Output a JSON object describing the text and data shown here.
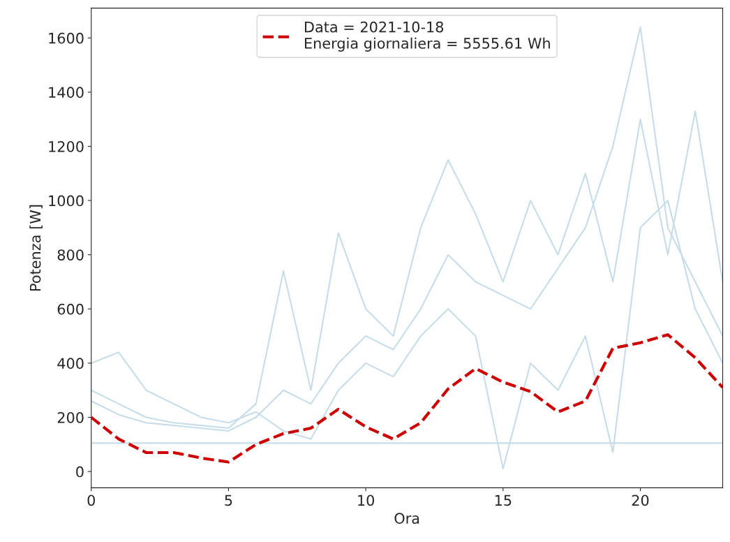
{
  "chart_data": {
    "type": "line",
    "xlabel": "Ora",
    "ylabel": "Potenza [W]",
    "x": [
      0,
      1,
      2,
      3,
      4,
      5,
      6,
      7,
      8,
      9,
      10,
      11,
      12,
      13,
      14,
      15,
      16,
      17,
      18,
      19,
      20,
      21,
      22,
      23
    ],
    "series": [
      {
        "color": "#c6dde9",
        "values": [
          105,
          105,
          105,
          105,
          105,
          105,
          105,
          105,
          105,
          105,
          105,
          105,
          105,
          105,
          105,
          105,
          105,
          105,
          105,
          105,
          105,
          105,
          105,
          105
        ]
      },
      {
        "color": "#c6dde9",
        "values": [
          260,
          210,
          180,
          170,
          160,
          150,
          200,
          300,
          250,
          400,
          500,
          450,
          600,
          800,
          700,
          650,
          600,
          750,
          900,
          1200,
          1640,
          900,
          700,
          500
        ]
      },
      {
        "color": "#c6dde9",
        "values": [
          300,
          250,
          200,
          180,
          170,
          160,
          250,
          740,
          300,
          880,
          600,
          500,
          900,
          1150,
          950,
          700,
          1000,
          800,
          1100,
          700,
          1300,
          800,
          1330,
          700
        ]
      },
      {
        "color": "#c6dde9",
        "values": [
          400,
          440,
          300,
          250,
          200,
          180,
          220,
          150,
          120,
          300,
          400,
          350,
          500,
          600,
          500,
          10,
          400,
          300,
          500,
          70,
          900,
          1000,
          600,
          400
        ]
      },
      {
        "color": "#cc0000",
        "line_style": "dashed",
        "name": "Data = 2021-10-18\nEnergia giornaliera = 5555.61 Wh",
        "values": [
          200,
          120,
          70,
          70,
          50,
          35,
          100,
          140,
          160,
          230,
          165,
          120,
          180,
          305,
          380,
          330,
          295,
          220,
          260,
          455,
          475,
          505,
          420,
          310
        ]
      }
    ],
    "xlim": [
      0,
      23
    ],
    "xticks": [
      0,
      5,
      10,
      15,
      20
    ],
    "ylim": [
      -60,
      1710
    ],
    "yticks": [
      0,
      200,
      400,
      600,
      800,
      1000,
      1200,
      1400,
      1600
    ],
    "grid": false,
    "legend": "top"
  }
}
